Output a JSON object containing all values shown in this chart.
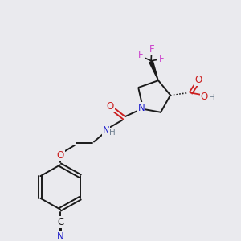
{
  "bg_color": "#eaeaee",
  "bond_color": "#1a1a1a",
  "N_color": "#2020cc",
  "O_color": "#cc2020",
  "F_color": "#cc44cc",
  "H_color": "#708090",
  "font_size": 8.5,
  "figsize": [
    3.0,
    3.0
  ],
  "dpi": 100,
  "xlim": [
    0,
    10
  ],
  "ylim": [
    0,
    10
  ]
}
